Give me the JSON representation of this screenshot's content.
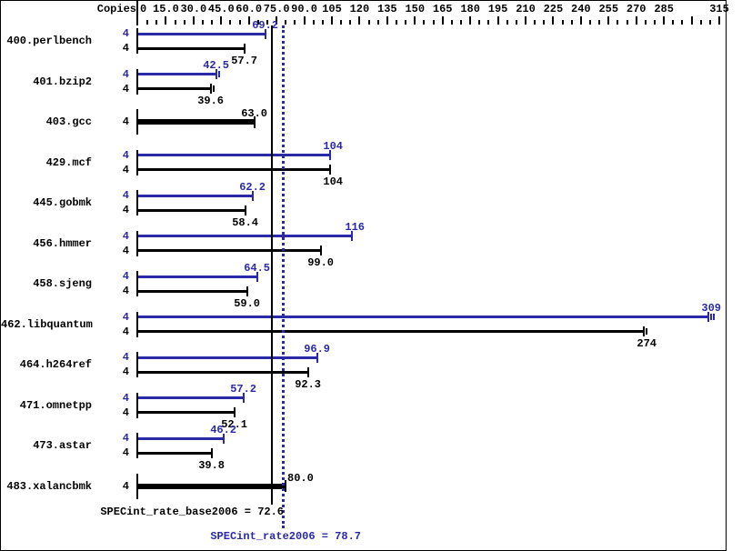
{
  "header": {
    "copies_label": "Copies"
  },
  "colors": {
    "peak": "#2929aa",
    "base": "#000000",
    "background": "#ffffff",
    "border": "#000000"
  },
  "chart_data": {
    "type": "bar",
    "orientation": "horizontal",
    "xlabel": "",
    "ylabel": "Copies",
    "axis": {
      "min": 0,
      "max": 315,
      "minor_step": 5,
      "major_step": 15,
      "labels": [
        {
          "v": 0,
          "text": "0"
        },
        {
          "v": 15,
          "text": "15.0"
        },
        {
          "v": 30,
          "text": "30.0"
        },
        {
          "v": 45,
          "text": "45.0"
        },
        {
          "v": 60,
          "text": "60.0"
        },
        {
          "v": 75,
          "text": "75.0"
        },
        {
          "v": 90,
          "text": "90.0"
        },
        {
          "v": 105,
          "text": "105"
        },
        {
          "v": 120,
          "text": "120"
        },
        {
          "v": 135,
          "text": "135"
        },
        {
          "v": 150,
          "text": "150"
        },
        {
          "v": 165,
          "text": "165"
        },
        {
          "v": 180,
          "text": "180"
        },
        {
          "v": 195,
          "text": "195"
        },
        {
          "v": 210,
          "text": "210"
        },
        {
          "v": 225,
          "text": "225"
        },
        {
          "v": 240,
          "text": "240"
        },
        {
          "v": 255,
          "text": "255"
        },
        {
          "v": 270,
          "text": "270"
        },
        {
          "v": 285,
          "text": "285"
        },
        {
          "v": 315,
          "text": "315"
        }
      ]
    },
    "benchmarks": [
      {
        "name": "400.perlbench",
        "bars": [
          {
            "series": "peak",
            "copies": "4",
            "value": 69.2,
            "label": "69.2",
            "end_marks": 1
          },
          {
            "series": "base",
            "copies": "4",
            "value": 57.7,
            "label": "57.7",
            "end_marks": 1
          }
        ]
      },
      {
        "name": "401.bzip2",
        "bars": [
          {
            "series": "peak",
            "copies": "4",
            "value": 42.5,
            "label": "42.5",
            "end_marks": 2
          },
          {
            "series": "base",
            "copies": "4",
            "value": 39.6,
            "label": "39.6",
            "end_marks": 2
          }
        ]
      },
      {
        "name": "403.gcc",
        "bars": [
          {
            "series": "base",
            "copies": "4",
            "value": 63.0,
            "label": "63.0",
            "end_marks": 1,
            "thick": true
          }
        ]
      },
      {
        "name": "429.mcf",
        "bars": [
          {
            "series": "peak",
            "copies": "4",
            "value": 104,
            "label": "104",
            "end_marks": 1
          },
          {
            "series": "base",
            "copies": "4",
            "value": 104,
            "label": "104",
            "end_marks": 1
          }
        ]
      },
      {
        "name": "445.gobmk",
        "bars": [
          {
            "series": "peak",
            "copies": "4",
            "value": 62.2,
            "label": "62.2",
            "end_marks": 1
          },
          {
            "series": "base",
            "copies": "4",
            "value": 58.4,
            "label": "58.4",
            "end_marks": 1
          }
        ]
      },
      {
        "name": "456.hmmer",
        "bars": [
          {
            "series": "peak",
            "copies": "4",
            "value": 116,
            "label": "116",
            "end_marks": 1
          },
          {
            "series": "base",
            "copies": "4",
            "value": 99.0,
            "label": "99.0",
            "end_marks": 1
          }
        ]
      },
      {
        "name": "458.sjeng",
        "bars": [
          {
            "series": "peak",
            "copies": "4",
            "value": 64.5,
            "label": "64.5",
            "end_marks": 1
          },
          {
            "series": "base",
            "copies": "4",
            "value": 59.0,
            "label": "59.0",
            "end_marks": 1
          }
        ]
      },
      {
        "name": "462.libquantum",
        "bars": [
          {
            "series": "peak",
            "copies": "4",
            "value": 309,
            "label": "309",
            "end_marks": 3
          },
          {
            "series": "base",
            "copies": "4",
            "value": 274,
            "label": "274",
            "end_marks": 2
          }
        ]
      },
      {
        "name": "464.h264ref",
        "bars": [
          {
            "series": "peak",
            "copies": "4",
            "value": 96.9,
            "label": "96.9",
            "end_marks": 1
          },
          {
            "series": "base",
            "copies": "4",
            "value": 92.3,
            "label": "92.3",
            "end_marks": 1
          }
        ]
      },
      {
        "name": "471.omnetpp",
        "bars": [
          {
            "series": "peak",
            "copies": "4",
            "value": 57.2,
            "label": "57.2",
            "end_marks": 1
          },
          {
            "series": "base",
            "copies": "4",
            "value": 52.1,
            "label": "52.1",
            "end_marks": 1
          }
        ]
      },
      {
        "name": "473.astar",
        "bars": [
          {
            "series": "peak",
            "copies": "4",
            "value": 46.2,
            "label": "46.2",
            "end_marks": 1
          },
          {
            "series": "base",
            "copies": "4",
            "value": 39.8,
            "label": "39.8",
            "end_marks": 1
          }
        ]
      },
      {
        "name": "483.xalancbmk",
        "bars": [
          {
            "series": "base",
            "copies": "4",
            "value": 80.0,
            "label": "80.0",
            "end_marks": 1,
            "thick": true,
            "label_after_end": true
          }
        ]
      }
    ],
    "base_line": {
      "value": 72.6,
      "label": "SPECint_rate_base2006 = 72.6",
      "style": "solid"
    },
    "peak_line": {
      "value": 78.7,
      "label": "SPECint_rate2006 = 78.7",
      "style": "dotted"
    }
  }
}
